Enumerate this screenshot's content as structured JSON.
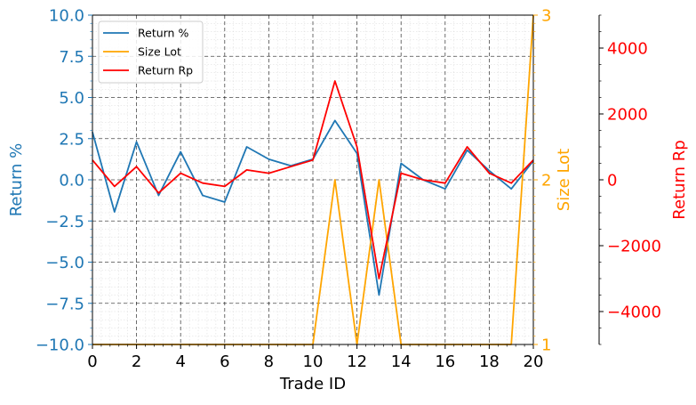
{
  "chart_data": {
    "type": "line",
    "xlabel": "Trade ID",
    "xlim": [
      0,
      20
    ],
    "xticks": [
      0,
      2,
      4,
      6,
      8,
      10,
      12,
      14,
      16,
      18,
      20
    ],
    "grid": true,
    "legend": {
      "placement": "top-left",
      "entries": [
        "Return %",
        "Size Lot",
        "Return Rp"
      ]
    },
    "x": [
      0,
      1,
      2,
      3,
      4,
      5,
      6,
      7,
      8,
      9,
      10,
      11,
      12,
      13,
      14,
      15,
      16,
      17,
      18,
      19,
      20
    ],
    "series": [
      {
        "name": "Return %",
        "axis": "left",
        "color": "#1f77b4",
        "values": [
          2.9,
          -1.95,
          2.3,
          -0.95,
          1.7,
          -0.95,
          -1.35,
          2.0,
          1.25,
          0.85,
          1.25,
          3.6,
          1.6,
          -7.0,
          1.0,
          0.0,
          -0.55,
          1.8,
          0.55,
          -0.55,
          1.15
        ]
      },
      {
        "name": "Size Lot",
        "axis": "right1",
        "color": "#ffa500",
        "values": [
          1,
          1,
          1,
          1,
          1,
          1,
          1,
          1,
          1,
          1,
          1,
          2,
          1,
          2,
          1,
          1,
          1,
          1,
          1,
          1,
          3
        ]
      },
      {
        "name": "Return Rp",
        "axis": "right2",
        "color": "#ff0000",
        "values": [
          600,
          -200,
          400,
          -400,
          200,
          -100,
          -200,
          300,
          200,
          400,
          600,
          3000,
          1000,
          -3000,
          200,
          0,
          -100,
          1000,
          200,
          -100,
          600
        ]
      }
    ],
    "axes": {
      "left": {
        "label": "Return %",
        "color": "#1f77b4",
        "ylim": [
          -10,
          10
        ],
        "ticks": [
          -10,
          -7.5,
          -5,
          -2.5,
          0,
          2.5,
          5,
          7.5,
          10
        ],
        "tick_labels": [
          "−10.0",
          "−7.5",
          "−5.0",
          "−2.5",
          "0.0",
          "2.5",
          "5.0",
          "7.5",
          "10.0"
        ]
      },
      "right1": {
        "label": "Size Lot",
        "color": "#ffa500",
        "ylim": [
          1,
          3
        ],
        "ticks": [
          1,
          2,
          3
        ],
        "tick_labels": [
          "1",
          "2",
          "3"
        ]
      },
      "right2": {
        "label": "Return Rp",
        "color": "#ff0000",
        "ylim": [
          -5000,
          5000
        ],
        "ticks": [
          -4000,
          -2000,
          0,
          2000,
          4000
        ],
        "tick_labels": [
          "−4000",
          "−2000",
          "0",
          "2000",
          "4000"
        ]
      }
    }
  }
}
